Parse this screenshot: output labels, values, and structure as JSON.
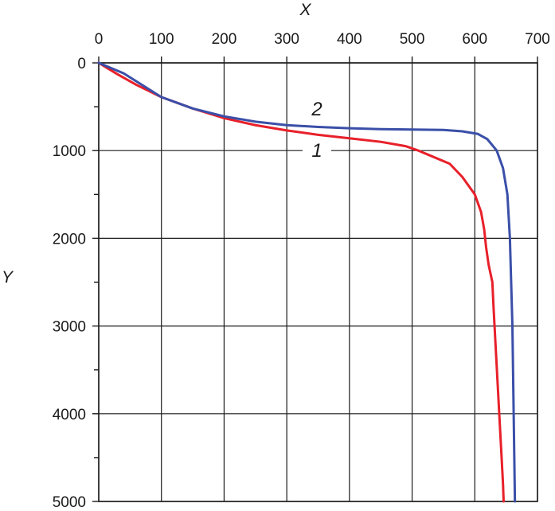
{
  "chart_data": {
    "type": "line",
    "title": "",
    "xlabel": "X",
    "ylabel": "Y",
    "xlim": [
      0,
      700
    ],
    "ylim": [
      0,
      5000
    ],
    "y_inverted": true,
    "x_axis_position": "top",
    "grid": true,
    "x_ticks": [
      0,
      100,
      200,
      300,
      400,
      500,
      600,
      700
    ],
    "y_ticks": [
      0,
      1000,
      2000,
      3000,
      4000,
      5000
    ],
    "x_tick_labels": [
      "0",
      "100",
      "200",
      "300",
      "400",
      "500",
      "600",
      "700"
    ],
    "y_tick_labels": [
      "0",
      "1000",
      "2000",
      "3000",
      "4000",
      "5000"
    ],
    "series": [
      {
        "label": "1",
        "color": "#e8202a",
        "points": [
          [
            0,
            0
          ],
          [
            30,
            130
          ],
          [
            60,
            250
          ],
          [
            100,
            390
          ],
          [
            150,
            520
          ],
          [
            200,
            630
          ],
          [
            250,
            710
          ],
          [
            300,
            770
          ],
          [
            350,
            820
          ],
          [
            400,
            860
          ],
          [
            450,
            900
          ],
          [
            490,
            950
          ],
          [
            510,
            1000
          ],
          [
            530,
            1060
          ],
          [
            560,
            1150
          ],
          [
            580,
            1300
          ],
          [
            600,
            1500
          ],
          [
            610,
            1700
          ],
          [
            615,
            1900
          ],
          [
            618,
            2100
          ],
          [
            622,
            2300
          ],
          [
            628,
            2500
          ],
          [
            630,
            2800
          ],
          [
            633,
            3200
          ],
          [
            636,
            3600
          ],
          [
            639,
            4000
          ],
          [
            642,
            4400
          ],
          [
            645,
            4800
          ],
          [
            646,
            5000
          ]
        ]
      },
      {
        "label": "2",
        "color": "#3a4fa8",
        "points": [
          [
            0,
            0
          ],
          [
            40,
            120
          ],
          [
            100,
            390
          ],
          [
            150,
            520
          ],
          [
            200,
            610
          ],
          [
            250,
            670
          ],
          [
            300,
            710
          ],
          [
            350,
            730
          ],
          [
            400,
            745
          ],
          [
            450,
            755
          ],
          [
            500,
            760
          ],
          [
            550,
            765
          ],
          [
            580,
            780
          ],
          [
            605,
            810
          ],
          [
            620,
            870
          ],
          [
            635,
            1000
          ],
          [
            645,
            1200
          ],
          [
            652,
            1500
          ],
          [
            656,
            2000
          ],
          [
            658,
            2500
          ],
          [
            660,
            3000
          ],
          [
            661,
            3500
          ],
          [
            662,
            4000
          ],
          [
            663,
            4500
          ],
          [
            664,
            5000
          ]
        ]
      }
    ]
  }
}
